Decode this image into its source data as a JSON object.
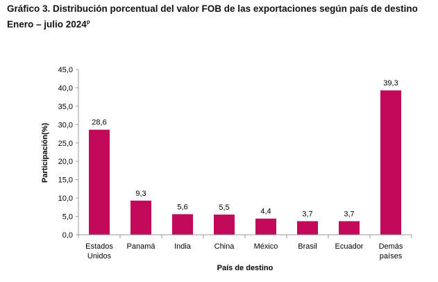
{
  "title_line1": "Gráfico 3. Distribución porcentual del valor FOB de las exportaciones según país de destino",
  "title_line2": "Enero – julio 2024",
  "title_sup": "p",
  "chart_data": {
    "type": "bar",
    "categories": [
      [
        "Estados",
        "Unidos"
      ],
      [
        "Panamá"
      ],
      [
        "India"
      ],
      [
        "China"
      ],
      [
        "México"
      ],
      [
        "Brasil"
      ],
      [
        "Ecuador"
      ],
      [
        "Demás",
        "países"
      ]
    ],
    "values": [
      28.6,
      9.3,
      5.6,
      5.5,
      4.4,
      3.7,
      3.7,
      39.3
    ],
    "value_labels": [
      "28,6",
      "9,3",
      "5,6",
      "5,5",
      "4,4",
      "3,7",
      "3,7",
      "39,3"
    ],
    "xlabel": "País de destino",
    "ylabel": "Participación(%)",
    "ylim": [
      0,
      45
    ],
    "yticks": [
      "0,0",
      "5,0",
      "10,0",
      "15,0",
      "20,0",
      "25,0",
      "30,0",
      "35,0",
      "40,0",
      "45,0"
    ],
    "bar_color": "#C2095A",
    "grid": false,
    "legend": "none"
  }
}
